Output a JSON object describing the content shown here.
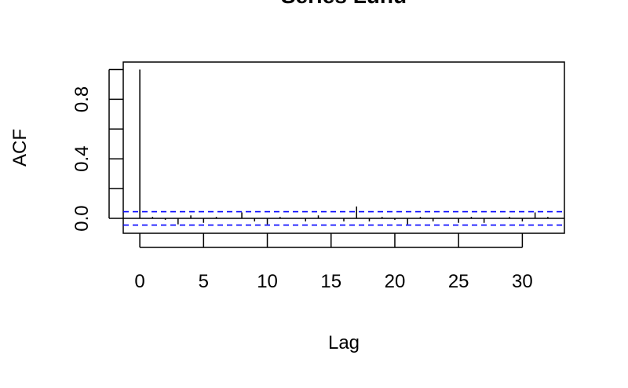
{
  "chart_data": {
    "type": "bar",
    "title": "Series Lunu",
    "xlabel": "Lag",
    "ylabel": "ACF",
    "xlim": [
      -1.3,
      33.3
    ],
    "ylim": [
      -0.1,
      1.05
    ],
    "x_ticks": [
      0,
      5,
      10,
      15,
      20,
      25,
      30
    ],
    "x_tick_labels": [
      "0",
      "5",
      "10",
      "15",
      "20",
      "25",
      "30"
    ],
    "y_ticks": [
      0.0,
      0.2,
      0.4,
      0.6,
      0.8,
      1.0
    ],
    "y_tick_labels": [
      "0.0",
      "0.4",
      "0.8"
    ],
    "y_tick_label_values": [
      0.0,
      0.4,
      0.8
    ],
    "lags": [
      0,
      1,
      2,
      3,
      4,
      5,
      6,
      7,
      8,
      9,
      10,
      11,
      12,
      13,
      14,
      15,
      16,
      17,
      18,
      19,
      20,
      21,
      22,
      23,
      24,
      25,
      26,
      27,
      28,
      29,
      30,
      31,
      32
    ],
    "values": [
      1.0,
      0.01,
      -0.01,
      -0.04,
      0.02,
      -0.03,
      0.01,
      0.0,
      0.04,
      -0.02,
      -0.04,
      0.01,
      0.0,
      -0.02,
      0.02,
      0.0,
      -0.02,
      0.08,
      -0.02,
      0.01,
      -0.01,
      -0.04,
      0.01,
      -0.02,
      0.0,
      -0.03,
      0.01,
      -0.03,
      0.0,
      0.01,
      -0.02,
      0.04,
      0.01
    ],
    "confidence_bounds": [
      0.045,
      -0.045
    ],
    "confidence_color": "#0000ff",
    "bar_color": "#000000"
  }
}
